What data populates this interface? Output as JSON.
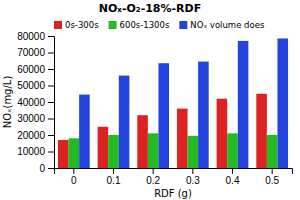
{
  "chart_data": {
    "type": "bar",
    "title": "NOₓ-O₂-18%-RDF",
    "xlabel": "RDF (g)",
    "ylabel": "NOₓ(mg/L)",
    "categories": [
      "0",
      "0.1",
      "0.2",
      "0.3",
      "0.4",
      "0.5"
    ],
    "series": [
      {
        "name": "0s-300s",
        "color": "#dd2222",
        "values": [
          17000,
          25000,
          32000,
          36000,
          42000,
          45000
        ]
      },
      {
        "name": "600s-1300s",
        "color": "#22bb22",
        "values": [
          18000,
          20000,
          21000,
          19500,
          21000,
          20000
        ]
      },
      {
        "name": "NOₓ volume does",
        "color": "#2244dd",
        "values": [
          44500,
          56000,
          63500,
          64500,
          77000,
          78500
        ]
      }
    ],
    "ylim": [
      0,
      80000
    ],
    "yticks": [
      0,
      10000,
      20000,
      30000,
      40000,
      50000,
      60000,
      70000,
      80000
    ],
    "legend": "upper left",
    "grid": false
  }
}
